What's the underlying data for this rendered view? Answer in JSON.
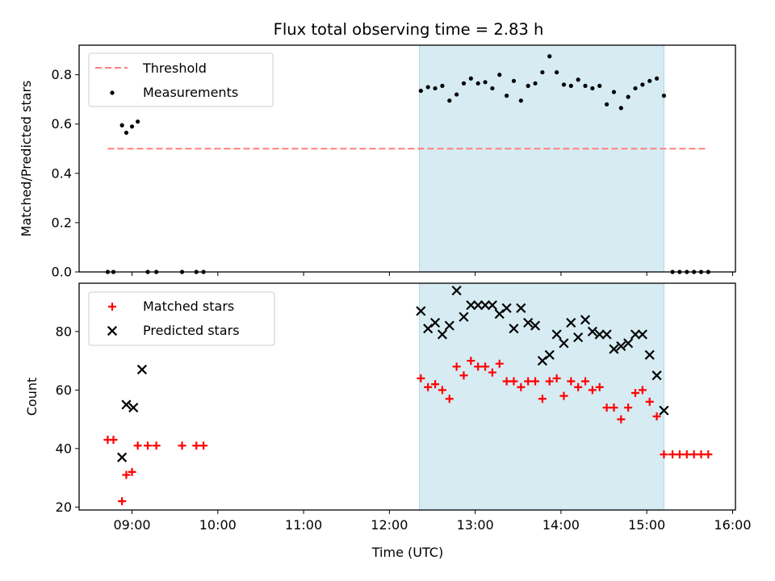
{
  "chart_data": {
    "type": "scatter",
    "title": "Flux total observing time = 2.83 h",
    "xlabel": "Time (UTC)",
    "xlim": [
      "08:23",
      "16:02"
    ],
    "xticks": [
      "09:00",
      "10:00",
      "11:00",
      "12:00",
      "13:00",
      "14:00",
      "15:00",
      "16:00"
    ],
    "shaded_span": {
      "x0": "12:21",
      "x1": "15:12",
      "color": "#add8e6"
    },
    "panels": [
      {
        "ylabel": "Matched/Predicted stars",
        "ylim": [
          0,
          0.92
        ],
        "yticks": [
          "0.0",
          "0.2",
          "0.4",
          "0.6",
          "0.8"
        ],
        "legend": {
          "placement": "upper-left",
          "entries": [
            "Threshold",
            "Measurements"
          ]
        },
        "threshold": {
          "name": "Threshold",
          "y": 0.5,
          "x0": "08:43",
          "x1": "15:43",
          "color": "#ff7f7f"
        },
        "measurements": {
          "name": "Measurements",
          "color": "#000000",
          "x": [
            "08:43",
            "08:47",
            "08:53",
            "08:56",
            "09:00",
            "09:04",
            "09:11",
            "09:17",
            "09:35",
            "09:45",
            "09:50",
            "12:22",
            "12:27",
            "12:32",
            "12:37",
            "12:42",
            "12:47",
            "12:52",
            "12:57",
            "13:02",
            "13:07",
            "13:12",
            "13:17",
            "13:22",
            "13:27",
            "13:32",
            "13:37",
            "13:42",
            "13:47",
            "13:52",
            "13:57",
            "14:02",
            "14:07",
            "14:12",
            "14:17",
            "14:22",
            "14:27",
            "14:32",
            "14:37",
            "14:42",
            "14:47",
            "14:52",
            "14:57",
            "15:02",
            "15:07",
            "15:12",
            "15:18",
            "15:23",
            "15:28",
            "15:33",
            "15:38",
            "15:43"
          ],
          "y": [
            0,
            0,
            0.595,
            0.565,
            0.59,
            0.61,
            0,
            0,
            0,
            0,
            0,
            0.735,
            0.75,
            0.745,
            0.755,
            0.695,
            0.72,
            0.765,
            0.785,
            0.765,
            0.77,
            0.745,
            0.8,
            0.715,
            0.775,
            0.695,
            0.755,
            0.765,
            0.81,
            0.875,
            0.81,
            0.76,
            0.755,
            0.78,
            0.755,
            0.745,
            0.755,
            0.68,
            0.73,
            0.665,
            0.71,
            0.745,
            0.76,
            0.775,
            0.785,
            0.715,
            0,
            0,
            0,
            0,
            0,
            0
          ]
        }
      },
      {
        "ylabel": "Count",
        "ylim": [
          19,
          96.5
        ],
        "yticks": [
          "20",
          "40",
          "60",
          "80"
        ],
        "legend": {
          "placement": "upper-left",
          "entries": [
            "Matched stars",
            "Predicted stars"
          ]
        },
        "matched": {
          "name": "Matched stars",
          "color": "#ff0000",
          "x": [
            "08:43",
            "08:47",
            "08:53",
            "08:56",
            "09:00",
            "09:04",
            "09:11",
            "09:17",
            "09:35",
            "09:45",
            "09:50",
            "12:22",
            "12:27",
            "12:32",
            "12:37",
            "12:42",
            "12:47",
            "12:52",
            "12:57",
            "13:02",
            "13:07",
            "13:12",
            "13:17",
            "13:22",
            "13:27",
            "13:32",
            "13:37",
            "13:42",
            "13:47",
            "13:52",
            "13:57",
            "14:02",
            "14:07",
            "14:12",
            "14:17",
            "14:22",
            "14:27",
            "14:32",
            "14:37",
            "14:42",
            "14:47",
            "14:52",
            "14:57",
            "15:02",
            "15:07",
            "15:12",
            "15:18",
            "15:23",
            "15:28",
            "15:33",
            "15:38",
            "15:43"
          ],
          "y": [
            43,
            43,
            22,
            31,
            32,
            41,
            41,
            41,
            41,
            41,
            41,
            64,
            61,
            62,
            60,
            57,
            68,
            65,
            70,
            68,
            68,
            66,
            69,
            63,
            63,
            61,
            63,
            63,
            57,
            63,
            64,
            58,
            63,
            61,
            63,
            60,
            61,
            54,
            54,
            50,
            54,
            59,
            60,
            56,
            51,
            38,
            38,
            38,
            38,
            38,
            38,
            38
          ]
        },
        "predicted": {
          "name": "Predicted stars",
          "color": "#000000",
          "x": [
            "08:53",
            "08:56",
            "09:01",
            "09:07",
            "12:22",
            "12:27",
            "12:32",
            "12:37",
            "12:42",
            "12:47",
            "12:52",
            "12:57",
            "13:02",
            "13:07",
            "13:12",
            "13:17",
            "13:22",
            "13:27",
            "13:32",
            "13:37",
            "13:42",
            "13:47",
            "13:52",
            "13:57",
            "14:02",
            "14:07",
            "14:12",
            "14:17",
            "14:22",
            "14:27",
            "14:32",
            "14:37",
            "14:42",
            "14:47",
            "14:52",
            "14:57",
            "15:02",
            "15:07",
            "15:12"
          ],
          "y": [
            37,
            55,
            54,
            67,
            87,
            81,
            83,
            79,
            82,
            94,
            85,
            89,
            89,
            89,
            89,
            86,
            88,
            81,
            88,
            83,
            82,
            70,
            72,
            79,
            76,
            83,
            78,
            84,
            80,
            79,
            79,
            74,
            75,
            76,
            79,
            79,
            72,
            65,
            53
          ]
        }
      }
    ]
  }
}
